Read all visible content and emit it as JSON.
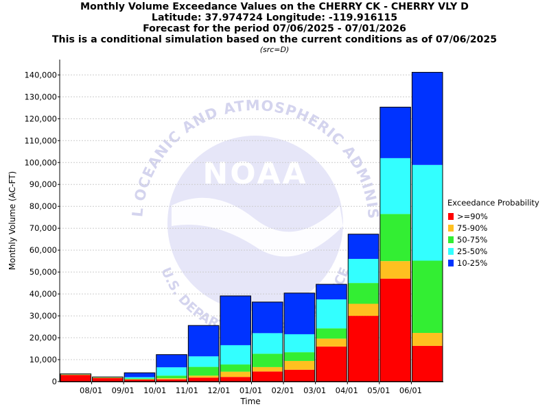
{
  "chart_data": {
    "type": "bar",
    "stacked": true,
    "title_lines": [
      "Monthly Volume Exceedance Values on the CHERRY CK - CHERRY VLY D",
      "Latitude: 37.974724 Longitude: -119.916115",
      "Forecast for the period 07/06/2025 - 07/01/2026",
      "This is a conditional simulation based on the current conditions as of 07/06/2025"
    ],
    "subtitle": "(src=D)",
    "xlabel": "Time",
    "ylabel": "Monthly Volume (AC-FT)",
    "ylim": [
      0,
      147000
    ],
    "yticks": [
      "0",
      "10,000",
      "20,000",
      "30,000",
      "40,000",
      "50,000",
      "60,000",
      "70,000",
      "80,000",
      "90,000",
      "100,000",
      "110,000",
      "120,000",
      "130,000",
      "140,000"
    ],
    "ytick_values": [
      0,
      10000,
      20000,
      30000,
      40000,
      50000,
      60000,
      70000,
      80000,
      90000,
      100000,
      110000,
      120000,
      130000,
      140000
    ],
    "categories": [
      "07/2025",
      "08/2025",
      "09/2025",
      "10/2025",
      "11/2025",
      "12/2025",
      "01/2026",
      "02/2026",
      "03/2026",
      "04/2026",
      "05/2026",
      "06/2026"
    ],
    "xtick_labels": [
      "08/01",
      "09/01",
      "10/01",
      "11/01",
      "12/01",
      "01/01",
      "02/01",
      "03/01",
      "04/01",
      "05/01",
      "06/01"
    ],
    "grid": true,
    "legend_title": "Exceedance Probability",
    "legend_placement": "right",
    "series": [
      {
        "name": ">=90%",
        "color": "#ff0000",
        "values": [
          3000,
          1600,
          900,
          1000,
          1800,
          2100,
          4600,
          5400,
          16000,
          30000,
          47000,
          16300
        ]
      },
      {
        "name": "75-90%",
        "color": "#ffc020",
        "values": [
          200,
          200,
          200,
          500,
          900,
          2400,
          2000,
          4000,
          3600,
          5500,
          8000,
          5900
        ]
      },
      {
        "name": "50-75%",
        "color": "#33ee33",
        "values": [
          100,
          100,
          300,
          1200,
          4000,
          3300,
          6100,
          4000,
          4700,
          9500,
          21500,
          33000
        ]
      },
      {
        "name": "25-50%",
        "color": "#33ffff",
        "values": [
          100,
          100,
          600,
          3800,
          4800,
          8800,
          9400,
          8200,
          13200,
          11000,
          25500,
          43700
        ]
      },
      {
        "name": "10-25%",
        "color": "#0033ff",
        "values": [
          100,
          100,
          2000,
          5800,
          14100,
          22500,
          14200,
          18800,
          6900,
          11300,
          23300,
          42300
        ]
      }
    ]
  },
  "watermark": {
    "logo_text": "NOAA",
    "ring_top": "NATIONAL OCEANIC AND ATMOSPHERIC ADMINISTRATION",
    "ring_bottom": "U.S. DEPARTMENT OF COMMERCE"
  }
}
